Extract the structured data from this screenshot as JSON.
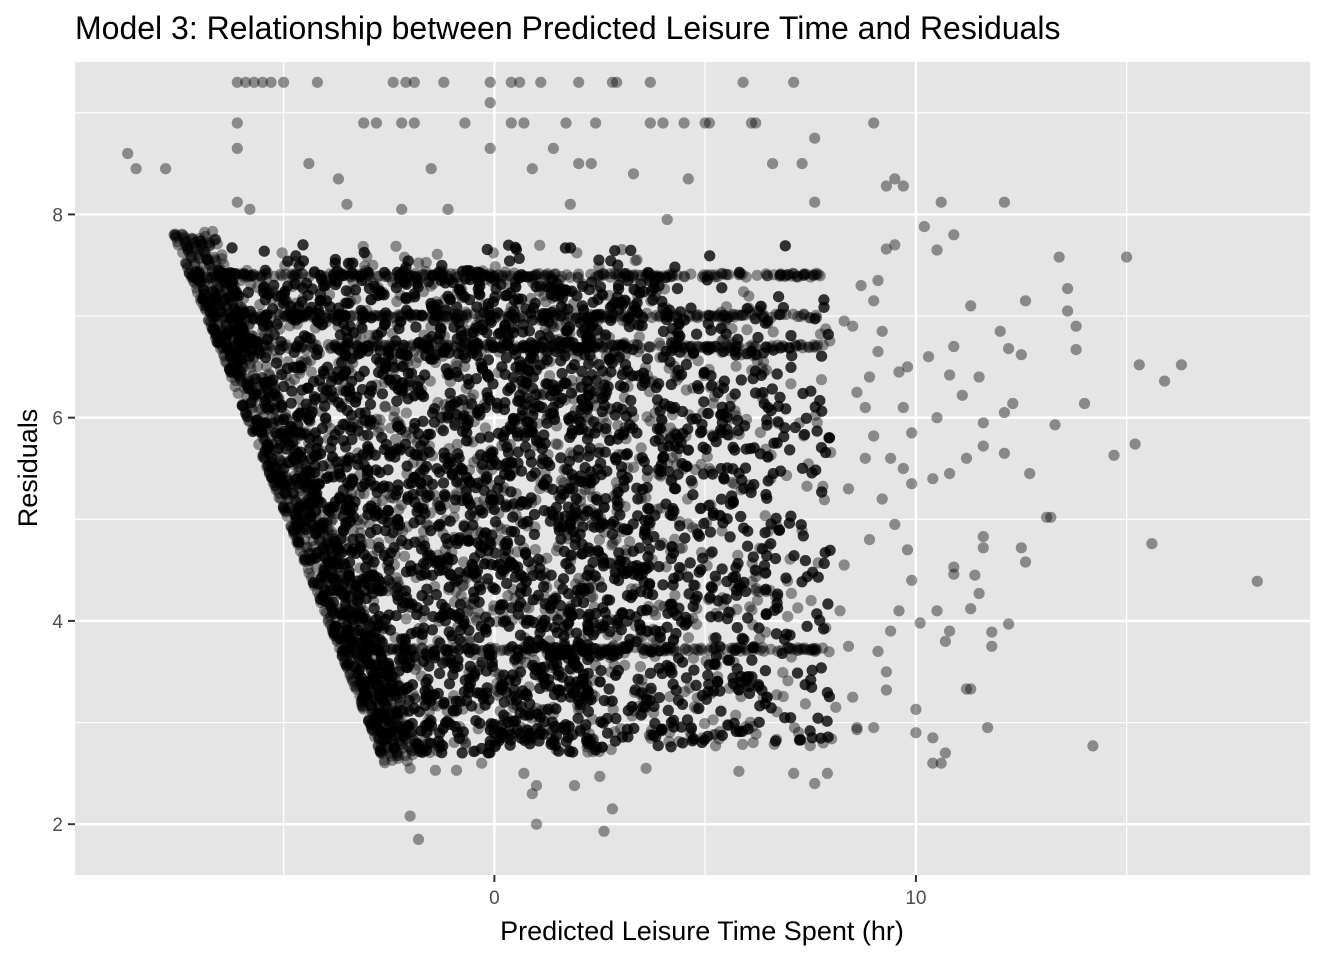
{
  "chart_data": {
    "type": "scatter",
    "title": "Model 3: Relationship between Predicted Leisure Time and Residuals",
    "xlabel": "Predicted Leisure Time Spent (hr)",
    "ylabel": "Residuals",
    "xlim": [
      -9.95,
      19.35
    ],
    "ylim": [
      1.5,
      9.5
    ],
    "x_ticks": [
      0,
      10
    ],
    "x_tick_labels": [
      "0",
      "10"
    ],
    "x_minor_ticks": [
      -5,
      5,
      15
    ],
    "y_ticks": [
      2,
      4,
      6,
      8
    ],
    "y_tick_labels": [
      "2",
      "4",
      "6",
      "8"
    ],
    "y_minor_ticks": [
      3,
      5,
      7,
      9
    ],
    "grid": true,
    "point_color": "#000000",
    "point_opacity": 0.4,
    "panel_color": "#e5e5e5",
    "gridline_color": "#ffffff",
    "dense_region": {
      "description_points": "approximate envelope of the dense cloud: residual + 0.5*predicted approx 1.4 to 2.0 lower edge",
      "x_range": [
        -7.4,
        8.0
      ],
      "y_range": [
        2.6,
        7.8
      ]
    },
    "points": [
      [
        -8.7,
        8.6
      ],
      [
        -8.5,
        8.45
      ],
      [
        -7.8,
        8.45
      ],
      [
        -7.6,
        7.8
      ],
      [
        -7.5,
        7.7
      ],
      [
        -6.1,
        9.3
      ],
      [
        -5.9,
        9.3
      ],
      [
        -5.7,
        9.3
      ],
      [
        -5.5,
        9.3
      ],
      [
        -5.3,
        9.3
      ],
      [
        -5.0,
        9.3
      ],
      [
        -4.2,
        9.3
      ],
      [
        -2.4,
        9.3
      ],
      [
        -2.1,
        9.3
      ],
      [
        -1.9,
        9.3
      ],
      [
        -1.2,
        9.3
      ],
      [
        -0.1,
        9.3
      ],
      [
        0.4,
        9.3
      ],
      [
        0.6,
        9.3
      ],
      [
        1.1,
        9.3
      ],
      [
        2.0,
        9.3
      ],
      [
        2.8,
        9.3
      ],
      [
        2.9,
        9.3
      ],
      [
        3.7,
        9.3
      ],
      [
        5.9,
        9.3
      ],
      [
        7.1,
        9.3
      ],
      [
        -0.1,
        9.1
      ],
      [
        -6.1,
        8.9
      ],
      [
        -3.1,
        8.9
      ],
      [
        -2.8,
        8.9
      ],
      [
        -2.2,
        8.9
      ],
      [
        -1.9,
        8.9
      ],
      [
        -0.7,
        8.9
      ],
      [
        0.4,
        8.9
      ],
      [
        0.7,
        8.9
      ],
      [
        1.7,
        8.9
      ],
      [
        2.4,
        8.9
      ],
      [
        3.7,
        8.9
      ],
      [
        4.0,
        8.9
      ],
      [
        4.5,
        8.9
      ],
      [
        5.0,
        8.9
      ],
      [
        5.1,
        8.9
      ],
      [
        6.1,
        8.9
      ],
      [
        6.2,
        8.9
      ],
      [
        9.0,
        8.9
      ],
      [
        -6.1,
        8.65
      ],
      [
        -0.1,
        8.65
      ],
      [
        1.4,
        8.65
      ],
      [
        7.6,
        8.75
      ],
      [
        -4.4,
        8.5
      ],
      [
        -3.7,
        8.35
      ],
      [
        -1.5,
        8.45
      ],
      [
        0.9,
        8.45
      ],
      [
        2.0,
        8.5
      ],
      [
        2.3,
        8.5
      ],
      [
        3.3,
        8.4
      ],
      [
        4.6,
        8.35
      ],
      [
        6.6,
        8.5
      ],
      [
        7.3,
        8.5
      ],
      [
        9.5,
        8.35
      ],
      [
        9.7,
        8.28
      ],
      [
        9.3,
        8.28
      ],
      [
        10.6,
        8.12
      ],
      [
        12.1,
        8.12
      ],
      [
        7.6,
        8.12
      ],
      [
        -6.1,
        8.12
      ],
      [
        -3.5,
        8.1
      ],
      [
        -5.8,
        8.05
      ],
      [
        -2.2,
        8.05
      ],
      [
        -1.1,
        8.05
      ],
      [
        1.8,
        8.1
      ],
      [
        4.1,
        7.95
      ],
      [
        10.2,
        7.88
      ],
      [
        10.5,
        7.65
      ],
      [
        10.9,
        7.8
      ],
      [
        9.3,
        7.66
      ],
      [
        9.5,
        7.7
      ],
      [
        13.4,
        7.58
      ],
      [
        15.0,
        7.58
      ],
      [
        13.6,
        7.27
      ],
      [
        13.6,
        7.05
      ],
      [
        12.6,
        7.15
      ],
      [
        11.3,
        7.1
      ],
      [
        12.0,
        6.85
      ],
      [
        12.2,
        6.68
      ],
      [
        12.5,
        6.62
      ],
      [
        13.8,
        6.9
      ],
      [
        13.8,
        6.67
      ],
      [
        15.3,
        6.52
      ],
      [
        15.9,
        6.36
      ],
      [
        16.3,
        6.52
      ],
      [
        14.0,
        6.14
      ],
      [
        12.3,
        6.14
      ],
      [
        11.1,
        6.22
      ],
      [
        10.8,
        6.42
      ],
      [
        9.8,
        6.5
      ],
      [
        10.5,
        6.0
      ],
      [
        10.3,
        6.6
      ],
      [
        10.9,
        6.7
      ],
      [
        11.5,
        6.4
      ],
      [
        12.1,
        6.05
      ],
      [
        13.3,
        5.93
      ],
      [
        14.7,
        5.63
      ],
      [
        15.2,
        5.74
      ],
      [
        12.7,
        5.45
      ],
      [
        12.1,
        5.65
      ],
      [
        11.6,
        5.72
      ],
      [
        11.2,
        5.6
      ],
      [
        11.6,
        5.95
      ],
      [
        10.8,
        5.45
      ],
      [
        10.4,
        5.4
      ],
      [
        9.9,
        5.35
      ],
      [
        9.4,
        5.6
      ],
      [
        9.0,
        5.82
      ],
      [
        13.2,
        5.02
      ],
      [
        13.1,
        5.02
      ],
      [
        15.6,
        4.76
      ],
      [
        18.1,
        4.39
      ],
      [
        12.5,
        4.72
      ],
      [
        12.6,
        4.58
      ],
      [
        11.6,
        4.72
      ],
      [
        11.6,
        4.83
      ],
      [
        10.9,
        4.53
      ],
      [
        10.9,
        4.46
      ],
      [
        11.4,
        4.45
      ],
      [
        11.5,
        4.27
      ],
      [
        11.3,
        4.12
      ],
      [
        10.5,
        4.1
      ],
      [
        10.1,
        3.98
      ],
      [
        11.8,
        3.89
      ],
      [
        12.2,
        3.97
      ],
      [
        11.8,
        3.75
      ],
      [
        10.8,
        3.9
      ],
      [
        10.7,
        3.8
      ],
      [
        9.3,
        3.5
      ],
      [
        9.3,
        3.32
      ],
      [
        11.2,
        3.33
      ],
      [
        11.3,
        3.33
      ],
      [
        10.0,
        3.13
      ],
      [
        11.7,
        2.95
      ],
      [
        14.2,
        2.77
      ],
      [
        10.0,
        2.9
      ],
      [
        10.4,
        2.85
      ],
      [
        10.4,
        2.6
      ],
      [
        10.6,
        2.6
      ],
      [
        10.7,
        2.7
      ],
      [
        9.0,
        2.95
      ],
      [
        8.6,
        2.93
      ],
      [
        8.0,
        2.84
      ],
      [
        7.8,
        2.8
      ],
      [
        7.6,
        2.4
      ],
      [
        7.9,
        2.5
      ],
      [
        7.1,
        2.5
      ],
      [
        5.8,
        2.52
      ],
      [
        3.6,
        2.55
      ],
      [
        2.5,
        2.47
      ],
      [
        1.9,
        2.38
      ],
      [
        1.0,
        2.38
      ],
      [
        0.9,
        2.3
      ],
      [
        2.8,
        2.15
      ],
      [
        1.0,
        2.0
      ],
      [
        -2.0,
        2.08
      ],
      [
        2.6,
        1.93
      ],
      [
        -1.8,
        1.85
      ],
      [
        -2.0,
        2.55
      ],
      [
        -1.4,
        2.53
      ],
      [
        -0.9,
        2.53
      ],
      [
        -0.3,
        2.6
      ],
      [
        0.7,
        2.5
      ],
      [
        9.2,
        6.85
      ],
      [
        9.1,
        6.65
      ],
      [
        8.9,
        6.4
      ],
      [
        8.8,
        6.1
      ],
      [
        9.6,
        6.45
      ],
      [
        9.7,
        6.1
      ],
      [
        9.9,
        5.85
      ],
      [
        9.7,
        5.5
      ],
      [
        9.2,
        5.2
      ],
      [
        9.5,
        4.95
      ],
      [
        9.8,
        4.7
      ],
      [
        9.9,
        4.4
      ],
      [
        9.6,
        4.1
      ],
      [
        9.4,
        3.9
      ],
      [
        9.1,
        3.7
      ],
      [
        8.9,
        4.8
      ],
      [
        8.8,
        5.6
      ],
      [
        8.6,
        6.25
      ],
      [
        8.5,
        6.9
      ],
      [
        8.3,
        6.95
      ],
      [
        8.7,
        7.3
      ],
      [
        9.0,
        7.15
      ],
      [
        9.1,
        7.35
      ],
      [
        8.4,
        5.3
      ],
      [
        8.3,
        4.55
      ],
      [
        8.2,
        4.1
      ],
      [
        8.4,
        3.75
      ],
      [
        8.5,
        3.25
      ],
      [
        8.1,
        3.15
      ],
      [
        8.6,
        2.95
      ]
    ]
  }
}
